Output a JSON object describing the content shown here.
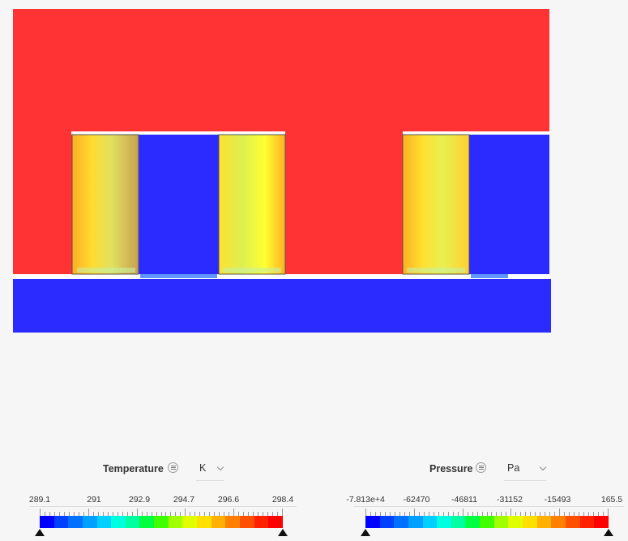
{
  "colors": {
    "background": "#f6f6f6",
    "hot_fluid": "#ff3333",
    "cold_fluid": "#2b2bff",
    "plate_edge": "#ffffff"
  },
  "legends": [
    {
      "quantity": "Temperature",
      "unit": "K",
      "labels": [
        "289.1",
        "291",
        "292.9",
        "294.7",
        "296.6",
        "298.4"
      ],
      "colors": [
        "#0000ff",
        "#0040ff",
        "#0070ff",
        "#00a0ff",
        "#00d0ff",
        "#00ffe0",
        "#00ffa0",
        "#00ff40",
        "#40ff00",
        "#a0ff00",
        "#e0ff00",
        "#ffe000",
        "#ffb000",
        "#ff8000",
        "#ff5000",
        "#ff2000",
        "#ff0000"
      ]
    },
    {
      "quantity": "Pressure",
      "unit": "Pa",
      "labels": [
        "-7.813e+4",
        "-62470",
        "-46811",
        "-31152",
        "-15493",
        "165.5"
      ],
      "colors": [
        "#0000ff",
        "#0040ff",
        "#0070ff",
        "#00a0ff",
        "#00d0ff",
        "#00ffe0",
        "#00ffa0",
        "#00ff40",
        "#40ff00",
        "#a0ff00",
        "#e0ff00",
        "#ffe000",
        "#ffb000",
        "#ff8000",
        "#ff5000",
        "#ff2000",
        "#ff0000"
      ]
    }
  ]
}
